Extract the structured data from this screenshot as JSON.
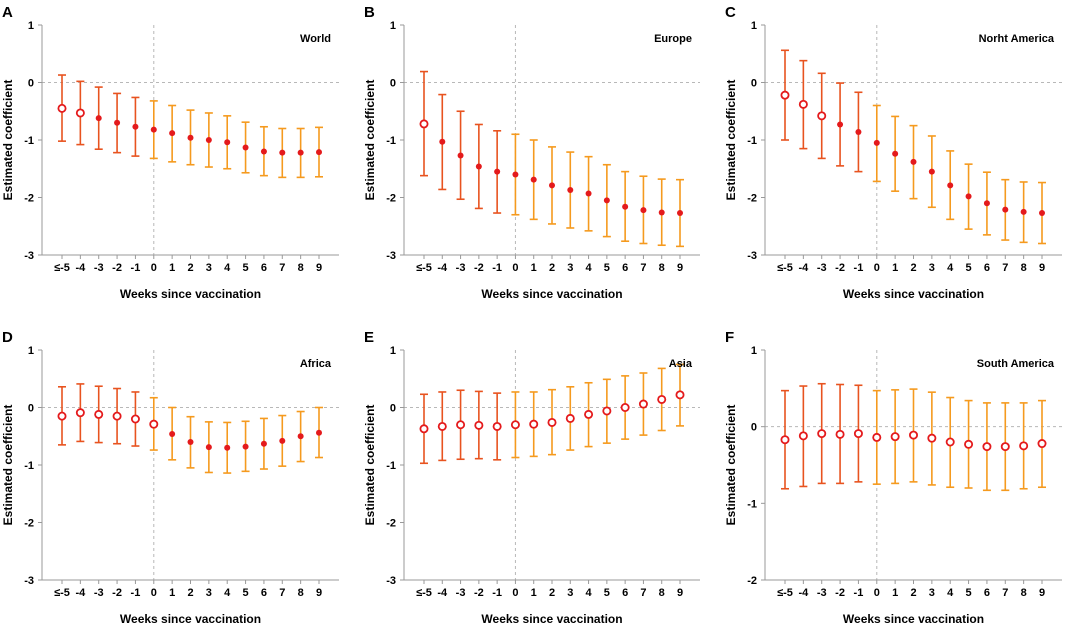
{
  "colors": {
    "ci_pre": "#e8531f",
    "ci_post": "#f59a1e",
    "point_filled": "#e41a1c",
    "point_hollow_stroke": "#e41a1c",
    "axis": "#999999",
    "refline": "#b8b8b8",
    "text": "#000000"
  },
  "chart_data": [
    {
      "type": "scatter",
      "panel_letter": "A",
      "region": "World",
      "categories": [
        "≤-5",
        "-4",
        "-3",
        "-2",
        "-1",
        "0",
        "1",
        "2",
        "3",
        "4",
        "5",
        "6",
        "7",
        "8",
        "9"
      ],
      "estimates": [
        -0.45,
        -0.53,
        -0.62,
        -0.7,
        -0.77,
        -0.82,
        -0.88,
        -0.96,
        -1.0,
        -1.04,
        -1.13,
        -1.2,
        -1.22,
        -1.22,
        -1.21
      ],
      "ci_lower": [
        -1.02,
        -1.08,
        -1.16,
        -1.22,
        -1.28,
        -1.32,
        -1.38,
        -1.43,
        -1.47,
        -1.5,
        -1.57,
        -1.62,
        -1.65,
        -1.65,
        -1.64
      ],
      "ci_upper": [
        0.13,
        0.02,
        -0.08,
        -0.19,
        -0.26,
        -0.32,
        -0.4,
        -0.48,
        -0.53,
        -0.58,
        -0.69,
        -0.77,
        -0.8,
        -0.8,
        -0.78
      ],
      "significant": [
        false,
        false,
        true,
        true,
        true,
        true,
        true,
        true,
        true,
        true,
        true,
        true,
        true,
        true,
        true
      ],
      "xlabel": "Weeks since vaccination",
      "ylabel": "Estimated coefficient",
      "ylim": [
        -3,
        1
      ],
      "yticks": [
        1,
        0,
        -1,
        -2,
        -3
      ]
    },
    {
      "type": "scatter",
      "panel_letter": "B",
      "region": "Europe",
      "categories": [
        "≤-5",
        "-4",
        "-3",
        "-2",
        "-1",
        "0",
        "1",
        "2",
        "3",
        "4",
        "5",
        "6",
        "7",
        "8",
        "9"
      ],
      "estimates": [
        -0.72,
        -1.03,
        -1.27,
        -1.46,
        -1.55,
        -1.6,
        -1.69,
        -1.79,
        -1.87,
        -1.93,
        -2.05,
        -2.16,
        -2.22,
        -2.26,
        -2.27
      ],
      "ci_lower": [
        -1.62,
        -1.86,
        -2.03,
        -2.19,
        -2.27,
        -2.3,
        -2.38,
        -2.46,
        -2.53,
        -2.58,
        -2.68,
        -2.76,
        -2.8,
        -2.83,
        -2.85
      ],
      "ci_upper": [
        0.19,
        -0.21,
        -0.5,
        -0.73,
        -0.84,
        -0.9,
        -1.0,
        -1.12,
        -1.21,
        -1.29,
        -1.43,
        -1.55,
        -1.63,
        -1.68,
        -1.69
      ],
      "significant": [
        false,
        true,
        true,
        true,
        true,
        true,
        true,
        true,
        true,
        true,
        true,
        true,
        true,
        true,
        true
      ],
      "xlabel": "Weeks since vaccination",
      "ylabel": "Estimated coefficient",
      "ylim": [
        -3,
        1
      ],
      "yticks": [
        1,
        0,
        -1,
        -2,
        -3
      ]
    },
    {
      "type": "scatter",
      "panel_letter": "C",
      "region": "Norht America",
      "categories": [
        "≤-5",
        "-4",
        "-3",
        "-2",
        "-1",
        "0",
        "1",
        "2",
        "3",
        "4",
        "5",
        "6",
        "7",
        "8",
        "9"
      ],
      "estimates": [
        -0.22,
        -0.38,
        -0.58,
        -0.73,
        -0.86,
        -1.05,
        -1.24,
        -1.38,
        -1.55,
        -1.79,
        -1.98,
        -2.1,
        -2.21,
        -2.25,
        -2.27
      ],
      "ci_lower": [
        -1.0,
        -1.15,
        -1.32,
        -1.45,
        -1.55,
        -1.72,
        -1.89,
        -2.02,
        -2.17,
        -2.38,
        -2.55,
        -2.65,
        -2.74,
        -2.78,
        -2.8
      ],
      "ci_upper": [
        0.56,
        0.38,
        0.16,
        -0.01,
        -0.17,
        -0.4,
        -0.59,
        -0.75,
        -0.93,
        -1.19,
        -1.42,
        -1.56,
        -1.69,
        -1.73,
        -1.74
      ],
      "significant": [
        false,
        false,
        false,
        true,
        true,
        true,
        true,
        true,
        true,
        true,
        true,
        true,
        true,
        true,
        true
      ],
      "xlabel": "Weeks since vaccination",
      "ylabel": "Estimated coefficient",
      "ylim": [
        -3,
        1
      ],
      "yticks": [
        1,
        0,
        -1,
        -2,
        -3
      ]
    },
    {
      "type": "scatter",
      "panel_letter": "D",
      "region": "Africa",
      "categories": [
        "≤-5",
        "-4",
        "-3",
        "-2",
        "-1",
        "0",
        "1",
        "2",
        "3",
        "4",
        "5",
        "6",
        "7",
        "8",
        "9"
      ],
      "estimates": [
        -0.15,
        -0.09,
        -0.12,
        -0.15,
        -0.2,
        -0.29,
        -0.46,
        -0.6,
        -0.69,
        -0.7,
        -0.68,
        -0.63,
        -0.58,
        -0.5,
        -0.44
      ],
      "ci_lower": [
        -0.65,
        -0.59,
        -0.61,
        -0.63,
        -0.67,
        -0.74,
        -0.91,
        -1.05,
        -1.13,
        -1.14,
        -1.11,
        -1.07,
        -1.02,
        -0.94,
        -0.87
      ],
      "ci_upper": [
        0.36,
        0.41,
        0.37,
        0.33,
        0.27,
        0.17,
        0.0,
        -0.16,
        -0.25,
        -0.26,
        -0.24,
        -0.19,
        -0.14,
        -0.07,
        0.0
      ],
      "significant": [
        false,
        false,
        false,
        false,
        false,
        false,
        true,
        true,
        true,
        true,
        true,
        true,
        true,
        true,
        true
      ],
      "xlabel": "Weeks since vaccination",
      "ylabel": "Estimated coefficient",
      "ylim": [
        -3,
        1
      ],
      "yticks": [
        1,
        0,
        -1,
        -2,
        -3
      ]
    },
    {
      "type": "scatter",
      "panel_letter": "E",
      "region": "Asia",
      "categories": [
        "≤-5",
        "-4",
        "-3",
        "-2",
        "-1",
        "0",
        "1",
        "2",
        "3",
        "4",
        "5",
        "6",
        "7",
        "8",
        "9"
      ],
      "estimates": [
        -0.37,
        -0.33,
        -0.3,
        -0.31,
        -0.33,
        -0.3,
        -0.29,
        -0.26,
        -0.19,
        -0.12,
        -0.06,
        0.0,
        0.06,
        0.14,
        0.22
      ],
      "ci_lower": [
        -0.97,
        -0.92,
        -0.9,
        -0.89,
        -0.91,
        -0.87,
        -0.85,
        -0.82,
        -0.74,
        -0.68,
        -0.62,
        -0.55,
        -0.48,
        -0.4,
        -0.32
      ],
      "ci_upper": [
        0.23,
        0.27,
        0.3,
        0.28,
        0.25,
        0.27,
        0.27,
        0.31,
        0.36,
        0.43,
        0.49,
        0.55,
        0.6,
        0.68,
        0.75
      ],
      "significant": [
        false,
        false,
        false,
        false,
        false,
        false,
        false,
        false,
        false,
        false,
        false,
        false,
        false,
        false,
        false
      ],
      "xlabel": "Weeks since vaccination",
      "ylabel": "Estimated coefficient",
      "ylim": [
        -3,
        1
      ],
      "yticks": [
        1,
        0,
        -1,
        -2,
        -3
      ]
    },
    {
      "type": "scatter",
      "panel_letter": "F",
      "region": "South America",
      "categories": [
        "≤-5",
        "-4",
        "-3",
        "-2",
        "-1",
        "0",
        "1",
        "2",
        "3",
        "4",
        "5",
        "6",
        "7",
        "8",
        "9"
      ],
      "estimates": [
        -0.17,
        -0.12,
        -0.09,
        -0.1,
        -0.09,
        -0.14,
        -0.13,
        -0.11,
        -0.15,
        -0.2,
        -0.23,
        -0.26,
        -0.26,
        -0.25,
        -0.22
      ],
      "ci_lower": [
        -0.81,
        -0.78,
        -0.74,
        -0.74,
        -0.72,
        -0.75,
        -0.74,
        -0.72,
        -0.76,
        -0.79,
        -0.8,
        -0.83,
        -0.83,
        -0.81,
        -0.79
      ],
      "ci_upper": [
        0.47,
        0.53,
        0.56,
        0.55,
        0.54,
        0.47,
        0.48,
        0.49,
        0.45,
        0.38,
        0.34,
        0.31,
        0.31,
        0.31,
        0.34
      ],
      "significant": [
        false,
        false,
        false,
        false,
        false,
        false,
        false,
        false,
        false,
        false,
        false,
        false,
        false,
        false,
        false
      ],
      "xlabel": "Weeks since vaccination",
      "ylabel": "Estimated coefficient",
      "ylim": [
        -2,
        1
      ],
      "yticks": [
        1,
        0,
        -1,
        -2
      ]
    }
  ]
}
